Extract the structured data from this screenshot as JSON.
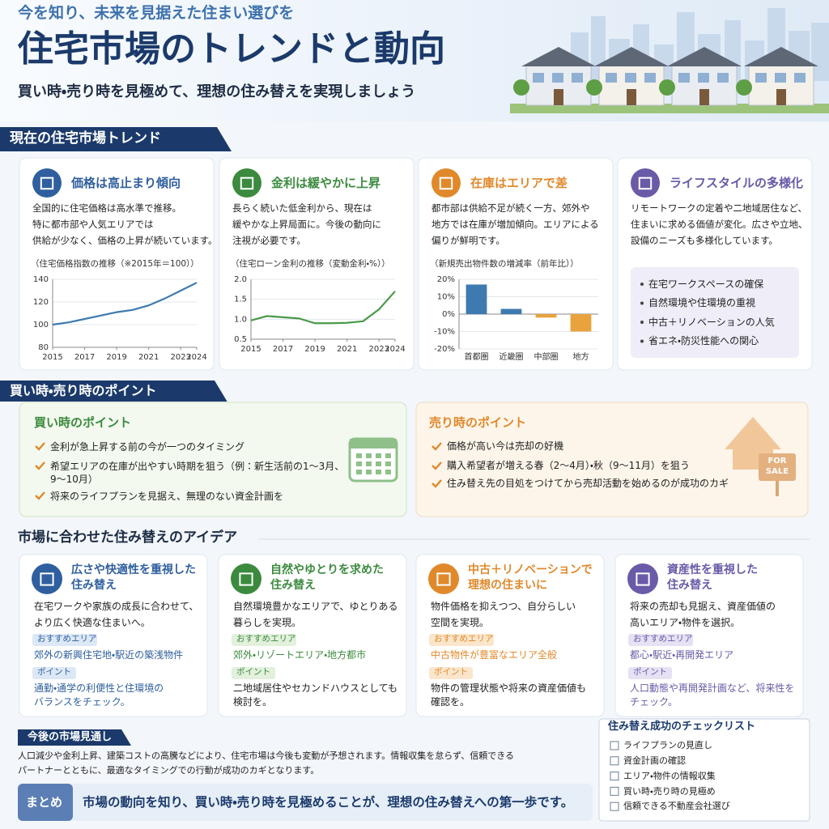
{
  "header": {
    "tagline": "今を知り、未来を見据えた住まい選びを",
    "title": "住宅市場のトレンドと動向",
    "subtitle": "買い時・売り時を見極めて、理想の住み替えを実現しましょう"
  },
  "trend": {
    "heading": "現在の住宅市場トレンド",
    "cards": [
      {
        "title": "価格は高止まり傾向",
        "body": [
          "全国的に住宅価格は高水準で推移。",
          "特に都市部や人気エリアでは",
          "供給が少なく、価格の上昇が続いています。"
        ],
        "chart_data": {
          "type": "line",
          "title": "（住宅価格指数の推移（※2015年＝100））",
          "x": [
            2015,
            2016,
            2017,
            2018,
            2019,
            2020,
            2021,
            2022,
            2023,
            2024
          ],
          "xlim": [
            2015,
            2024
          ],
          "xticks": [
            2015,
            2017,
            2019,
            2021,
            2023,
            2024
          ],
          "ylim": [
            80,
            140
          ],
          "yticks": [
            80,
            100,
            120,
            140
          ],
          "grid": true,
          "series": [
            {
              "color": "#3d7ab0",
              "values": [
                100,
                102,
                105,
                108,
                111,
                113,
                117,
                123,
                130,
                137
              ]
            }
          ]
        }
      },
      {
        "title": "金利は緩やかに上昇",
        "body": [
          "長らく続いた低金利から、現在は",
          "緩やかな上昇局面に。今後の動向に",
          "注視が必要です。"
        ],
        "chart_data": {
          "type": "line",
          "title": "（住宅ローン金利の推移（変動金利・%））",
          "x": [
            2015,
            2016,
            2017,
            2018,
            2019,
            2020,
            2021,
            2022,
            2023,
            2024
          ],
          "xlim": [
            2015,
            2024
          ],
          "xticks": [
            2015,
            2017,
            2019,
            2021,
            2023,
            2024
          ],
          "ylim": [
            0.5,
            2
          ],
          "yticks": [
            0.5,
            {
              "value": 1,
              "label": "1.0"
            },
            1.5,
            {
              "value": 2,
              "label": "2.0"
            }
          ],
          "grid": true,
          "series": [
            {
              "color": "#4a9a4a",
              "values": [
                0.97,
                1.08,
                1.05,
                1.02,
                0.9,
                0.9,
                0.91,
                0.95,
                1.25,
                1.7
              ]
            }
          ]
        }
      },
      {
        "title": "在庫はエリアで差",
        "body": [
          "都市部は供給不足が続く一方、郊外や",
          "地方では在庫が増加傾向。エリアによる",
          "偏りが鮮明です。"
        ],
        "chart_data": {
          "type": "bar",
          "title": "（新規売出物件数の増減率（前年比））",
          "categories": [
            "首都圏",
            "近畿圏",
            "中部圏",
            "地方"
          ],
          "values": [
            17,
            3,
            -2,
            -10
          ],
          "colors": [
            "#3d7ab0",
            "#3d7ab0",
            "#e8a33d",
            "#e8a33d"
          ],
          "ylim": [
            -20,
            20
          ],
          "yticks": [
            {
              "value": -20,
              "label": "-20%"
            },
            {
              "value": -10,
              "label": "-10%"
            },
            {
              "value": 0,
              "label": "0%"
            },
            {
              "value": 10,
              "label": "10%"
            },
            {
              "value": 20,
              "label": "20%"
            }
          ],
          "grid": true
        }
      },
      {
        "title": "ライフスタイルの多様化",
        "body": [
          "リモートワークの定着や二地域居住など、",
          "住まいに求める価値が変化。広さや立地、",
          "設備のニーズも多様化しています。"
        ],
        "list": [
          "在宅ワークスペースの確保",
          "自然環境や住環境の重視",
          "中古＋リノベーションの人気",
          "省エネ・防災性能への関心"
        ]
      }
    ]
  },
  "points": {
    "heading": "買い時・売り時のポイント",
    "buy": {
      "title": "買い時のポイント",
      "items": [
        "金利が急上昇する前の今が一つのタイミング",
        "希望エリアの在庫が出やすい時期を狙う（例：新生活前の1〜3月、9〜10月）",
        "将来のライフプランを見据え、無理のない資金計画を"
      ]
    },
    "sell": {
      "title": "売り時のポイント",
      "items": [
        "価格が高い今は売却の好機",
        "購入希望者が増える春（2〜4月）・秋（9〜11月）を狙う",
        "住み替え先の目処をつけてから売却活動を始めるのが成功のカギ"
      ],
      "sign": "FOR SALE"
    }
  },
  "ideas": {
    "heading": "市場に合わせた住み替えのアイデア",
    "cards": [
      {
        "title": [
          "広さや快適性を重視した",
          "住み替え"
        ],
        "body": [
          "在宅ワークや家族の成長に合わせて、",
          "より広く快適な住まいへ。"
        ],
        "rec_label": "おすすめエリア",
        "rec": "郊外の新興住宅地・駅近の築浅物件",
        "point_label": "ポイント",
        "point": [
          "通勤・通学の利便性と住環境の",
          "バランスをチェック。"
        ]
      },
      {
        "title": [
          "自然やゆとりを求めた",
          "住み替え"
        ],
        "body": [
          "自然環境豊かなエリアで、ゆとりある",
          "暮らしを実現。"
        ],
        "rec_label": "おすすめエリア",
        "rec": "郊外・リゾートエリア・地方都市",
        "point_label": "ポイント",
        "point": [
          "二地域居住やセカンドハウスとしても",
          "検討を。"
        ]
      },
      {
        "title": [
          "中古＋リノベーションで",
          "理想の住まいに"
        ],
        "body": [
          "物件価格を抑えつつ、自分らしい",
          "空間を実現。"
        ],
        "rec_label": "おすすめエリア",
        "rec": "中古物件が豊富なエリア全般",
        "point_label": "ポイント",
        "point": [
          "物件の管理状態や将来の資産価値も",
          "確認を。"
        ]
      },
      {
        "title": [
          "資産性を重視した",
          "住み替え"
        ],
        "body": [
          "将来の売却も見据え、資産価値の",
          "高いエリア・物件を選択。"
        ],
        "rec_label": "おすすめエリア",
        "rec": "都心・駅近・再開発エリア",
        "point_label": "ポイント",
        "point": [
          "人口動態や再開発計画など、将来性を",
          "チェック。"
        ]
      }
    ]
  },
  "outlook": {
    "heading": "今後の市場見通し",
    "body": [
      "人口減少や金利上昇、建築コストの高騰などにより、住宅市場は今後も変動が予想されます。情報収集を怠らず、信頼できる",
      "パートナーとともに、最適なタイミングでの行動が成功のカギとなります。"
    ]
  },
  "summary": {
    "label": "まとめ",
    "text": "市場の動向を知り、買い時・売り時を見極めることが、理想の住み替えへの第一歩です。"
  },
  "checklist": {
    "title": "住み替え成功のチェックリスト",
    "items": [
      "ライフプランの見直し",
      "資金計画の確認",
      "エリア・物件の情報収集",
      "買い時・売り時の見極め",
      "信頼できる不動産会社選び"
    ]
  }
}
